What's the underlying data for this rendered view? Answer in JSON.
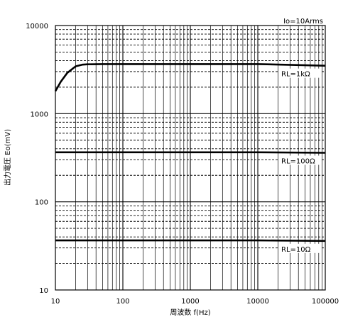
{
  "chart_data": {
    "type": "line",
    "title": "",
    "xlabel": "周波数 f(Hz)",
    "ylabel": "出力電圧 Eo(mV)",
    "x_scale": "log",
    "y_scale": "log",
    "xlim": [
      10,
      100000
    ],
    "ylim": [
      10,
      10000
    ],
    "grid": true,
    "x_ticks": [
      "10",
      "100",
      "1000",
      "10000",
      "100000"
    ],
    "y_ticks": [
      "10",
      "100",
      "1000",
      "10000"
    ],
    "annotations": [
      "Io=10Arms"
    ],
    "series": [
      {
        "name": "RL=1kΩ",
        "x": [
          10,
          12,
          15,
          20,
          25,
          30,
          50,
          100,
          1000,
          10000,
          100000
        ],
        "y": [
          1800,
          2300,
          2900,
          3450,
          3600,
          3630,
          3650,
          3650,
          3650,
          3650,
          3500
        ]
      },
      {
        "name": "RL=100Ω",
        "x": [
          10,
          100,
          1000,
          10000,
          100000
        ],
        "y": [
          365,
          365,
          365,
          365,
          360
        ]
      },
      {
        "name": "RL=10Ω",
        "x": [
          10,
          100,
          1000,
          10000,
          100000
        ],
        "y": [
          36.5,
          36.5,
          36.5,
          36.5,
          36
        ]
      }
    ]
  }
}
